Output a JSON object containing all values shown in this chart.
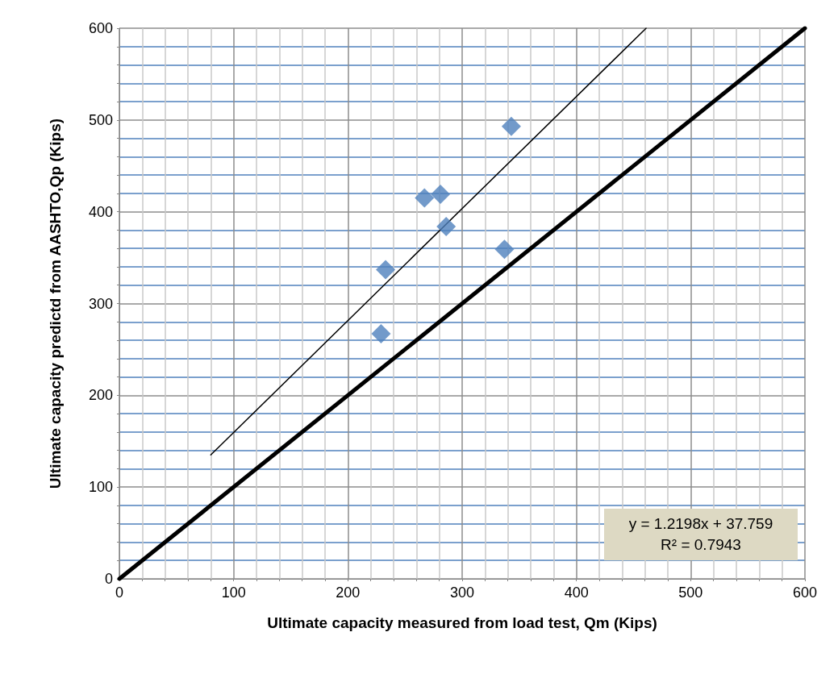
{
  "chart_data": {
    "type": "scatter",
    "xlabel": "Ultimate capacity measured from load test, Qm (Kips)",
    "ylabel": "Ultimate capacity predictd from AASHTO,Qp (Kips)",
    "xlim": [
      0,
      600
    ],
    "xticks": [
      0,
      {
        "value": 20,
        "label": null
      },
      {
        "value": 40,
        "label": null
      },
      {
        "value": 60,
        "label": null
      },
      {
        "value": 80,
        "label": null
      },
      100,
      {
        "value": 120,
        "label": null
      },
      {
        "value": 140,
        "label": null
      },
      {
        "value": 160,
        "label": null
      },
      {
        "value": 180,
        "label": null
      },
      200,
      {
        "value": 220,
        "label": null
      },
      {
        "value": 240,
        "label": null
      },
      {
        "value": 260,
        "label": null
      },
      {
        "value": 280,
        "label": null
      },
      300,
      {
        "value": 320,
        "label": null
      },
      {
        "value": 340,
        "label": null
      },
      {
        "value": 360,
        "label": null
      },
      {
        "value": 380,
        "label": null
      },
      400,
      {
        "value": 420,
        "label": null
      },
      {
        "value": 440,
        "label": null
      },
      {
        "value": 460,
        "label": null
      },
      {
        "value": 480,
        "label": null
      },
      500,
      {
        "value": 520,
        "label": null
      },
      {
        "value": 540,
        "label": null
      },
      {
        "value": 560,
        "label": null
      },
      {
        "value": 580,
        "label": null
      },
      600
    ],
    "ylim": [
      0,
      600
    ],
    "yticks": [
      0,
      {
        "value": 20,
        "label": null
      },
      {
        "value": 40,
        "label": null
      },
      {
        "value": 60,
        "label": null
      },
      {
        "value": 80,
        "label": null
      },
      100,
      {
        "value": 120,
        "label": null
      },
      {
        "value": 140,
        "label": null
      },
      {
        "value": 160,
        "label": null
      },
      {
        "value": 180,
        "label": null
      },
      200,
      {
        "value": 220,
        "label": null
      },
      {
        "value": 240,
        "label": null
      },
      {
        "value": 260,
        "label": null
      },
      {
        "value": 280,
        "label": null
      },
      300,
      {
        "value": 320,
        "label": null
      },
      {
        "value": 340,
        "label": null
      },
      {
        "value": 360,
        "label": null
      },
      {
        "value": 380,
        "label": null
      },
      400,
      {
        "value": 420,
        "label": null
      },
      {
        "value": 440,
        "label": null
      },
      {
        "value": 460,
        "label": null
      },
      {
        "value": 480,
        "label": null
      },
      500,
      {
        "value": 520,
        "label": null
      },
      {
        "value": 540,
        "label": null
      },
      {
        "value": 560,
        "label": null
      },
      {
        "value": 580,
        "label": null
      },
      600
    ],
    "grid": true,
    "marker": "diamond",
    "series": [
      {
        "color": "#4f81bd",
        "x": [
          229,
          233,
          267,
          281,
          286,
          337,
          343
        ],
        "values": [
          267,
          337,
          415,
          419,
          384,
          359,
          493
        ]
      },
      {
        "type": "line",
        "color": "#000000",
        "marker": "none",
        "x": [
          80,
          461
        ],
        "values": [
          135,
          600
        ]
      },
      {
        "type": "line",
        "color": "#000000",
        "marker": "none",
        "x": [
          0,
          600
        ],
        "values": [
          0,
          600
        ]
      }
    ],
    "annotations": [
      "y = 1.2198x + 37.759",
      "R² = 0.7943"
    ]
  }
}
